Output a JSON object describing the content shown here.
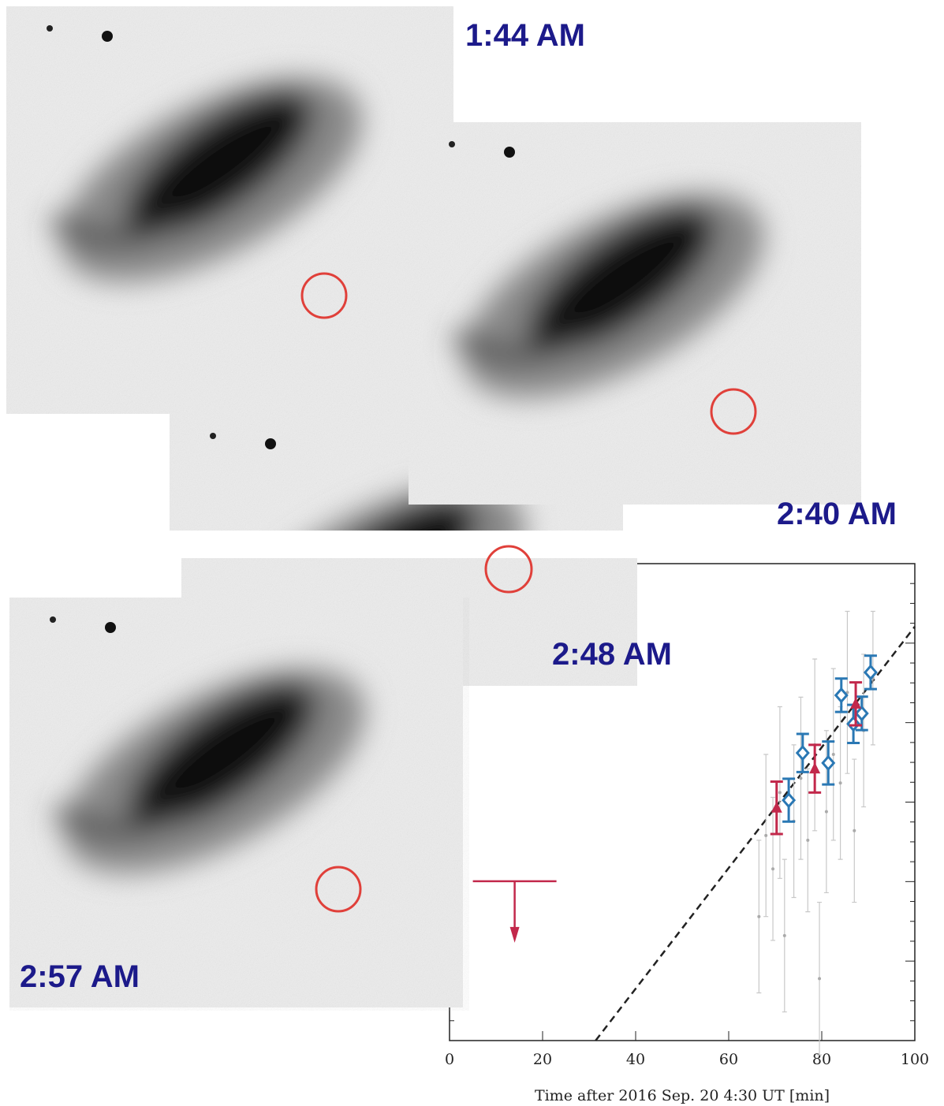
{
  "image_labels": [
    "1:44 AM",
    "2:40 AM",
    "2:48 AM",
    "2:57 AM"
  ],
  "chart_data": {
    "type": "scatter",
    "xlabel": "Time after 2016 Sep. 20 4:30 UT [min]",
    "xlim": [
      0,
      100
    ],
    "xticks": [
      0,
      20,
      40,
      60,
      80,
      100
    ],
    "ylim": [
      0,
      10
    ],
    "series": [
      {
        "color": "#c8c8c8",
        "marker": "dot",
        "x": [
          66.5,
          68,
          69.5,
          71,
          72,
          74,
          75.5,
          77,
          78.5,
          79.5,
          81,
          82.5,
          84,
          85.5,
          87,
          89,
          91
        ],
        "values": [
          2.6,
          4.3,
          3.6,
          5.2,
          2.2,
          4.6,
          5.5,
          4.2,
          6.2,
          1.3,
          4.8,
          6.0,
          5.4,
          7.3,
          4.4,
          6.5,
          7.6
        ],
        "errors": [
          1.6,
          1.7,
          1.5,
          1.8,
          1.6,
          1.6,
          1.7,
          1.5,
          1.8,
          1.6,
          1.7,
          1.8,
          1.6,
          1.7,
          1.5,
          1.6,
          1.4
        ]
      },
      {
        "color": "#2a78b4",
        "marker": "diamond",
        "x": [
          72.9,
          75.9,
          81.4,
          84.2,
          86.8,
          88.6,
          90.5
        ],
        "values": [
          5.04,
          6.03,
          5.82,
          7.24,
          6.64,
          6.86,
          7.72
        ],
        "errors": [
          0.45,
          0.4,
          0.45,
          0.35,
          0.4,
          0.35,
          0.35
        ]
      },
      {
        "color": "#c2284b",
        "marker": "triangle",
        "x": [
          70.3,
          78.5,
          87.3
        ],
        "values": [
          4.88,
          5.7,
          7.06
        ],
        "errors": [
          0.55,
          0.5,
          0.45
        ]
      }
    ],
    "fit_line": {
      "x": [
        31.4,
        100
      ],
      "values": [
        0,
        8.68
      ],
      "color": "#222"
    },
    "upper_limit": {
      "x": 14,
      "value": 3.34,
      "color": "#c2284b"
    }
  }
}
